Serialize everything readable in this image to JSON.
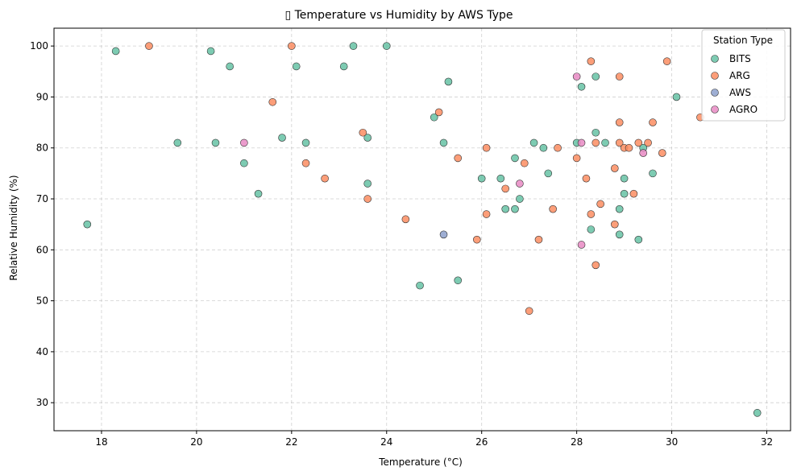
{
  "chart_data": {
    "type": "scatter",
    "title": "▯ Temperature vs Humidity by AWS Type",
    "xlabel": "Temperature (°C)",
    "ylabel": "Relative Humidity (%)",
    "xlim": [
      17.0,
      32.5
    ],
    "ylim": [
      24.5,
      103.5
    ],
    "xticks": [
      18,
      20,
      22,
      24,
      26,
      28,
      30,
      32
    ],
    "yticks": [
      30,
      40,
      50,
      60,
      70,
      80,
      90,
      100
    ],
    "grid": true,
    "legend": {
      "title": "Station Type",
      "position": "top-right"
    },
    "series": [
      {
        "name": "BITS",
        "color": "#66c2a5",
        "points": [
          [
            17.7,
            65
          ],
          [
            18.3,
            99
          ],
          [
            19.6,
            81
          ],
          [
            20.3,
            99
          ],
          [
            20.4,
            81
          ],
          [
            20.7,
            96
          ],
          [
            21.0,
            77
          ],
          [
            21.3,
            71
          ],
          [
            21.8,
            82
          ],
          [
            22.1,
            96
          ],
          [
            22.3,
            81
          ],
          [
            23.1,
            96
          ],
          [
            23.3,
            100
          ],
          [
            23.6,
            82
          ],
          [
            23.6,
            73
          ],
          [
            24.0,
            100
          ],
          [
            24.7,
            53
          ],
          [
            25.0,
            86
          ],
          [
            25.2,
            81
          ],
          [
            25.3,
            93
          ],
          [
            25.5,
            54
          ],
          [
            26.0,
            74
          ],
          [
            26.4,
            74
          ],
          [
            26.5,
            68
          ],
          [
            26.7,
            78
          ],
          [
            26.7,
            68
          ],
          [
            26.8,
            70
          ],
          [
            27.1,
            81
          ],
          [
            27.3,
            80
          ],
          [
            27.4,
            75
          ],
          [
            28.0,
            81
          ],
          [
            28.1,
            92
          ],
          [
            28.3,
            64
          ],
          [
            28.4,
            94
          ],
          [
            28.4,
            83
          ],
          [
            28.6,
            81
          ],
          [
            28.9,
            68
          ],
          [
            28.9,
            63
          ],
          [
            29.0,
            74
          ],
          [
            29.0,
            71
          ],
          [
            29.3,
            62
          ],
          [
            29.4,
            80
          ],
          [
            29.6,
            75
          ],
          [
            30.1,
            90
          ],
          [
            31.8,
            28
          ]
        ]
      },
      {
        "name": "ARG",
        "color": "#fc8d62",
        "points": [
          [
            19.0,
            100
          ],
          [
            21.6,
            89
          ],
          [
            22.0,
            100
          ],
          [
            22.3,
            77
          ],
          [
            22.7,
            74
          ],
          [
            23.5,
            83
          ],
          [
            23.6,
            70
          ],
          [
            24.4,
            66
          ],
          [
            25.1,
            87
          ],
          [
            25.5,
            78
          ],
          [
            25.9,
            62
          ],
          [
            26.1,
            80
          ],
          [
            26.1,
            67
          ],
          [
            26.5,
            72
          ],
          [
            26.9,
            77
          ],
          [
            27.0,
            48
          ],
          [
            27.2,
            62
          ],
          [
            27.5,
            68
          ],
          [
            27.6,
            80
          ],
          [
            28.0,
            78
          ],
          [
            28.2,
            74
          ],
          [
            28.3,
            97
          ],
          [
            28.3,
            67
          ],
          [
            28.4,
            81
          ],
          [
            28.4,
            57
          ],
          [
            28.5,
            69
          ],
          [
            28.8,
            76
          ],
          [
            28.8,
            65
          ],
          [
            28.9,
            94
          ],
          [
            28.9,
            85
          ],
          [
            28.9,
            81
          ],
          [
            29.0,
            80
          ],
          [
            29.1,
            80
          ],
          [
            29.2,
            71
          ],
          [
            29.3,
            81
          ],
          [
            29.5,
            81
          ],
          [
            29.6,
            85
          ],
          [
            29.8,
            79
          ],
          [
            29.9,
            97
          ],
          [
            30.6,
            86
          ]
        ]
      },
      {
        "name": "AWS",
        "color": "#8da0cb",
        "points": [
          [
            25.2,
            63
          ]
        ]
      },
      {
        "name": "AGRO",
        "color": "#e78ac3",
        "points": [
          [
            21.0,
            81
          ],
          [
            26.8,
            73
          ],
          [
            28.0,
            94
          ],
          [
            28.1,
            81
          ],
          [
            28.1,
            61
          ],
          [
            29.4,
            79
          ]
        ]
      }
    ]
  }
}
